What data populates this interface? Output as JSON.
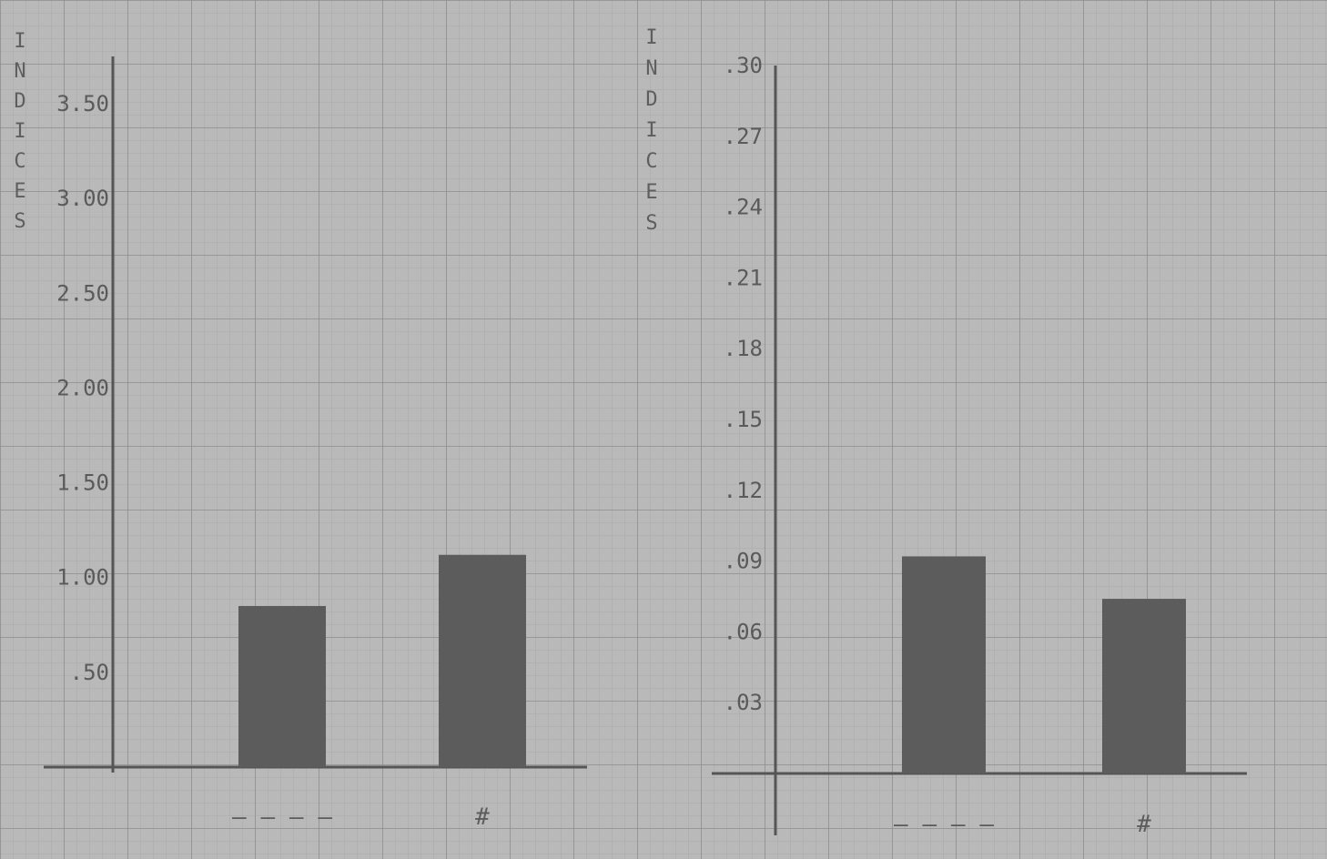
{
  "chart_data": [
    {
      "type": "bar",
      "ylabel": "INDICES",
      "ylim": [
        0,
        3.75
      ],
      "yticks": [
        ".50",
        "1.00",
        "1.50",
        "2.00",
        "2.50",
        "3.00",
        "3.50"
      ],
      "categories": [
        "————",
        "#"
      ],
      "values": [
        0.85,
        1.12
      ],
      "grid": true
    },
    {
      "type": "bar",
      "ylabel": "INDICES",
      "ylim": [
        0,
        0.3
      ],
      "yticks": [
        ".03",
        ".06",
        ".09",
        ".12",
        ".15",
        ".18",
        ".21",
        ".24",
        ".27",
        ".30"
      ],
      "categories": [
        "————",
        "#"
      ],
      "values": [
        0.092,
        0.074
      ],
      "grid": true
    }
  ],
  "colors": {
    "paper": "#b9b9b9",
    "grid_minor": "#a8a8a8",
    "grid_major": "#8a8a8a",
    "bar": "#5c5c5c",
    "axis": "#555555"
  }
}
